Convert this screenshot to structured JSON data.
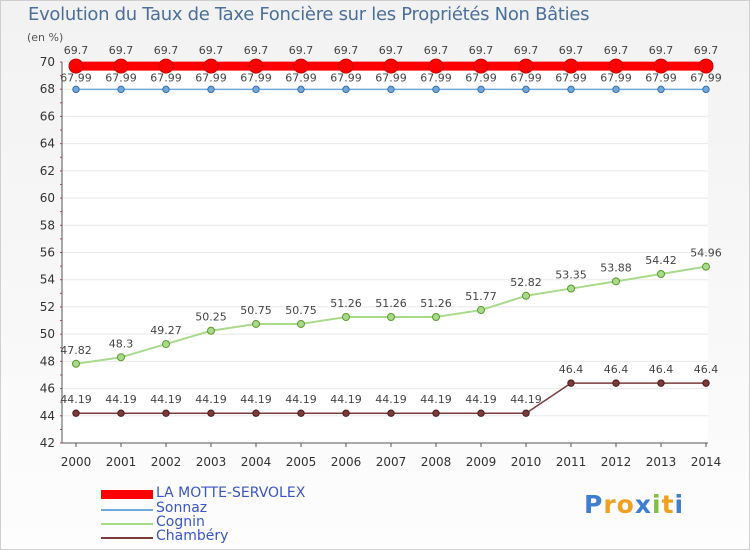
{
  "chart_data": {
    "type": "line",
    "title": "Evolution du Taux de Taxe Foncière sur les Propriétés Non Bâties",
    "ylabel": "(en %)",
    "xlabel": "",
    "ylim": [
      42,
      70
    ],
    "yticks": [
      "42",
      "44",
      "46",
      "48",
      "50",
      "52",
      "54",
      "56",
      "58",
      "60",
      "62",
      "64",
      "66",
      "68",
      "70"
    ],
    "categories": [
      "2000",
      "2001",
      "2002",
      "2003",
      "2004",
      "2005",
      "2006",
      "2007",
      "2008",
      "2009",
      "2010",
      "2011",
      "2012",
      "2013",
      "2014"
    ],
    "series": [
      {
        "name": "LA MOTTE-SERVOLEX",
        "color": "#ff0000",
        "values": [
          69.7,
          69.7,
          69.7,
          69.7,
          69.7,
          69.7,
          69.7,
          69.7,
          69.7,
          69.7,
          69.7,
          69.7,
          69.7,
          69.7,
          69.7
        ],
        "labels": [
          "69.7",
          "69.7",
          "69.7",
          "69.7",
          "69.7",
          "69.7",
          "69.7",
          "69.7",
          "69.7",
          "69.7",
          "69.7",
          "69.7",
          "69.7",
          "69.7",
          "69.7"
        ]
      },
      {
        "name": "Sonnaz",
        "color": "#6fa8dc",
        "values": [
          67.99,
          67.99,
          67.99,
          67.99,
          67.99,
          67.99,
          67.99,
          67.99,
          67.99,
          67.99,
          67.99,
          67.99,
          67.99,
          67.99,
          67.99
        ],
        "labels": [
          "67.99",
          "67.99",
          "67.99",
          "67.99",
          "67.99",
          "67.99",
          "67.99",
          "67.99",
          "67.99",
          "67.99",
          "67.99",
          "67.99",
          "67.99",
          "67.99",
          "67.99"
        ]
      },
      {
        "name": "Cognin",
        "color": "#a9d98b",
        "values": [
          47.82,
          48.3,
          49.27,
          50.25,
          50.75,
          50.75,
          51.26,
          51.26,
          51.26,
          51.77,
          52.82,
          53.35,
          53.88,
          54.42,
          54.96
        ],
        "labels": [
          "47.82",
          "48.3",
          "49.27",
          "50.25",
          "50.75",
          "50.75",
          "51.26",
          "51.26",
          "51.26",
          "51.77",
          "52.82",
          "53.35",
          "53.88",
          "54.42",
          "54.96"
        ]
      },
      {
        "name": "Chambéry",
        "color": "#7b3b3b",
        "values": [
          44.19,
          44.19,
          44.19,
          44.19,
          44.19,
          44.19,
          44.19,
          44.19,
          44.19,
          44.19,
          44.19,
          46.4,
          46.4,
          46.4,
          46.4
        ],
        "labels": [
          "44.19",
          "44.19",
          "44.19",
          "44.19",
          "44.19",
          "44.19",
          "44.19",
          "44.19",
          "44.19",
          "44.19",
          "44.19",
          "46.4",
          "46.4",
          "46.4",
          "46.4"
        ]
      }
    ],
    "legend_position": "bottom-left"
  },
  "logo": {
    "letters": [
      "P",
      "r",
      "o",
      "x",
      "i",
      "t",
      "i"
    ],
    "colors": [
      "#3f7fd0",
      "#f0a020",
      "#f0a020",
      "#3f7fd0",
      "#7fc040",
      "#f0a020",
      "#3f7fd0"
    ]
  }
}
